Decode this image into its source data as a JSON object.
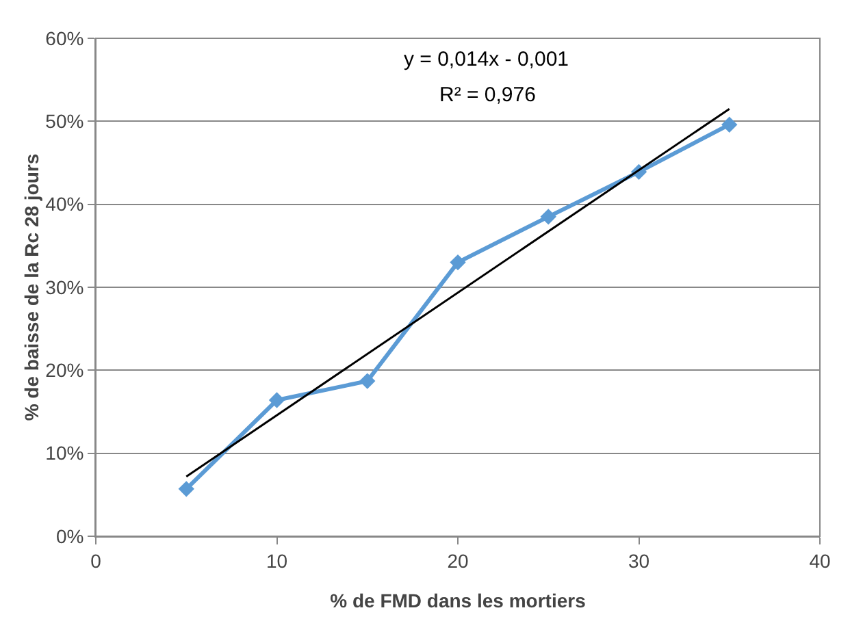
{
  "chart_data": {
    "type": "line",
    "xlabel": "% de FMD dans les mortiers",
    "ylabel": "% de baisse de la Rc 28 jours",
    "x": [
      5,
      10,
      15,
      20,
      25,
      30,
      35
    ],
    "series": [
      {
        "color": "#5b9bd5",
        "marker": "diamond",
        "values": [
          5.7,
          16.4,
          18.7,
          33.0,
          38.5,
          43.9,
          49.6
        ]
      },
      {
        "color": "#000000",
        "marker": "none",
        "x": [
          5,
          35
        ],
        "values": [
          7.2,
          51.5
        ]
      }
    ],
    "xlim": [
      0,
      40
    ],
    "xticks": [
      0,
      10,
      20,
      30,
      40
    ],
    "ylim": [
      0,
      60
    ],
    "yticks": [
      {
        "value": 0,
        "label": "0%"
      },
      {
        "value": 10,
        "label": "10%"
      },
      {
        "value": 20,
        "label": "20%"
      },
      {
        "value": 30,
        "label": "30%"
      },
      {
        "value": 40,
        "label": "40%"
      },
      {
        "value": 50,
        "label": "50%"
      },
      {
        "value": 60,
        "label": "60%"
      }
    ],
    "grid": "y",
    "annotations": [
      "y = 0,014x - 0,001",
      "R² = 0,976"
    ]
  }
}
